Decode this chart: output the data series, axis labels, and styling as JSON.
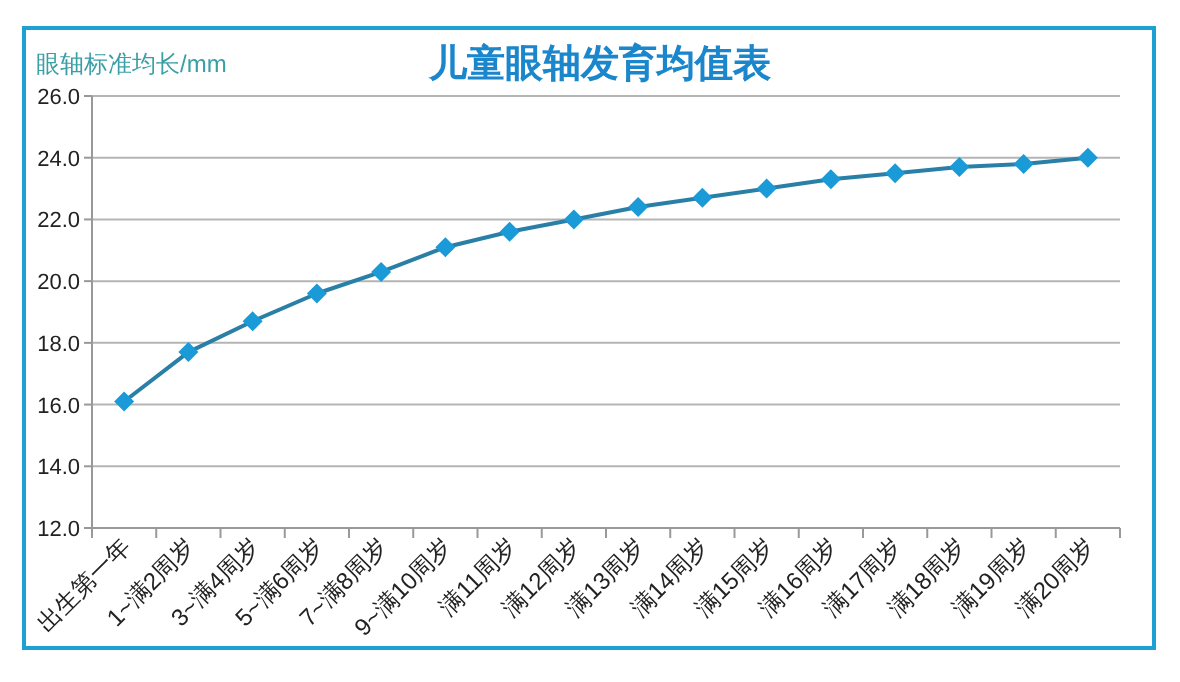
{
  "chart_data": {
    "type": "line",
    "title": "儿童眼轴发育均值表",
    "ylabel": "眼轴标准均长/mm",
    "categories": [
      "出生第一年",
      "1~满2周岁",
      "3~满4周岁",
      "5~满6周岁",
      "7~满8周岁",
      "9~满10周岁",
      "满11周岁",
      "满12周岁",
      "满13周岁",
      "满14周岁",
      "满15周岁",
      "满16周岁",
      "满17周岁",
      "满18周岁",
      "满19周岁",
      "满20周岁"
    ],
    "series": [
      {
        "color": "#1b9ad8",
        "values": [
          16.1,
          17.7,
          18.7,
          19.6,
          20.3,
          21.1,
          21.6,
          22.0,
          22.4,
          22.7,
          23.0,
          23.3,
          23.5,
          23.7,
          23.8,
          24.0
        ]
      }
    ],
    "ylim": [
      12,
      26
    ],
    "yticks": [
      {
        "value": 12,
        "label": "12.0"
      },
      {
        "value": 14,
        "label": "14.0"
      },
      {
        "value": 16,
        "label": "16.0"
      },
      {
        "value": 18,
        "label": "18.0"
      },
      {
        "value": 20,
        "label": "20.0"
      },
      {
        "value": 22,
        "label": "22.0"
      },
      {
        "value": 24,
        "label": "24.0"
      },
      {
        "value": 26,
        "label": "26.0"
      }
    ],
    "grid": "y",
    "marker": "diamond",
    "line_style": "solid"
  }
}
